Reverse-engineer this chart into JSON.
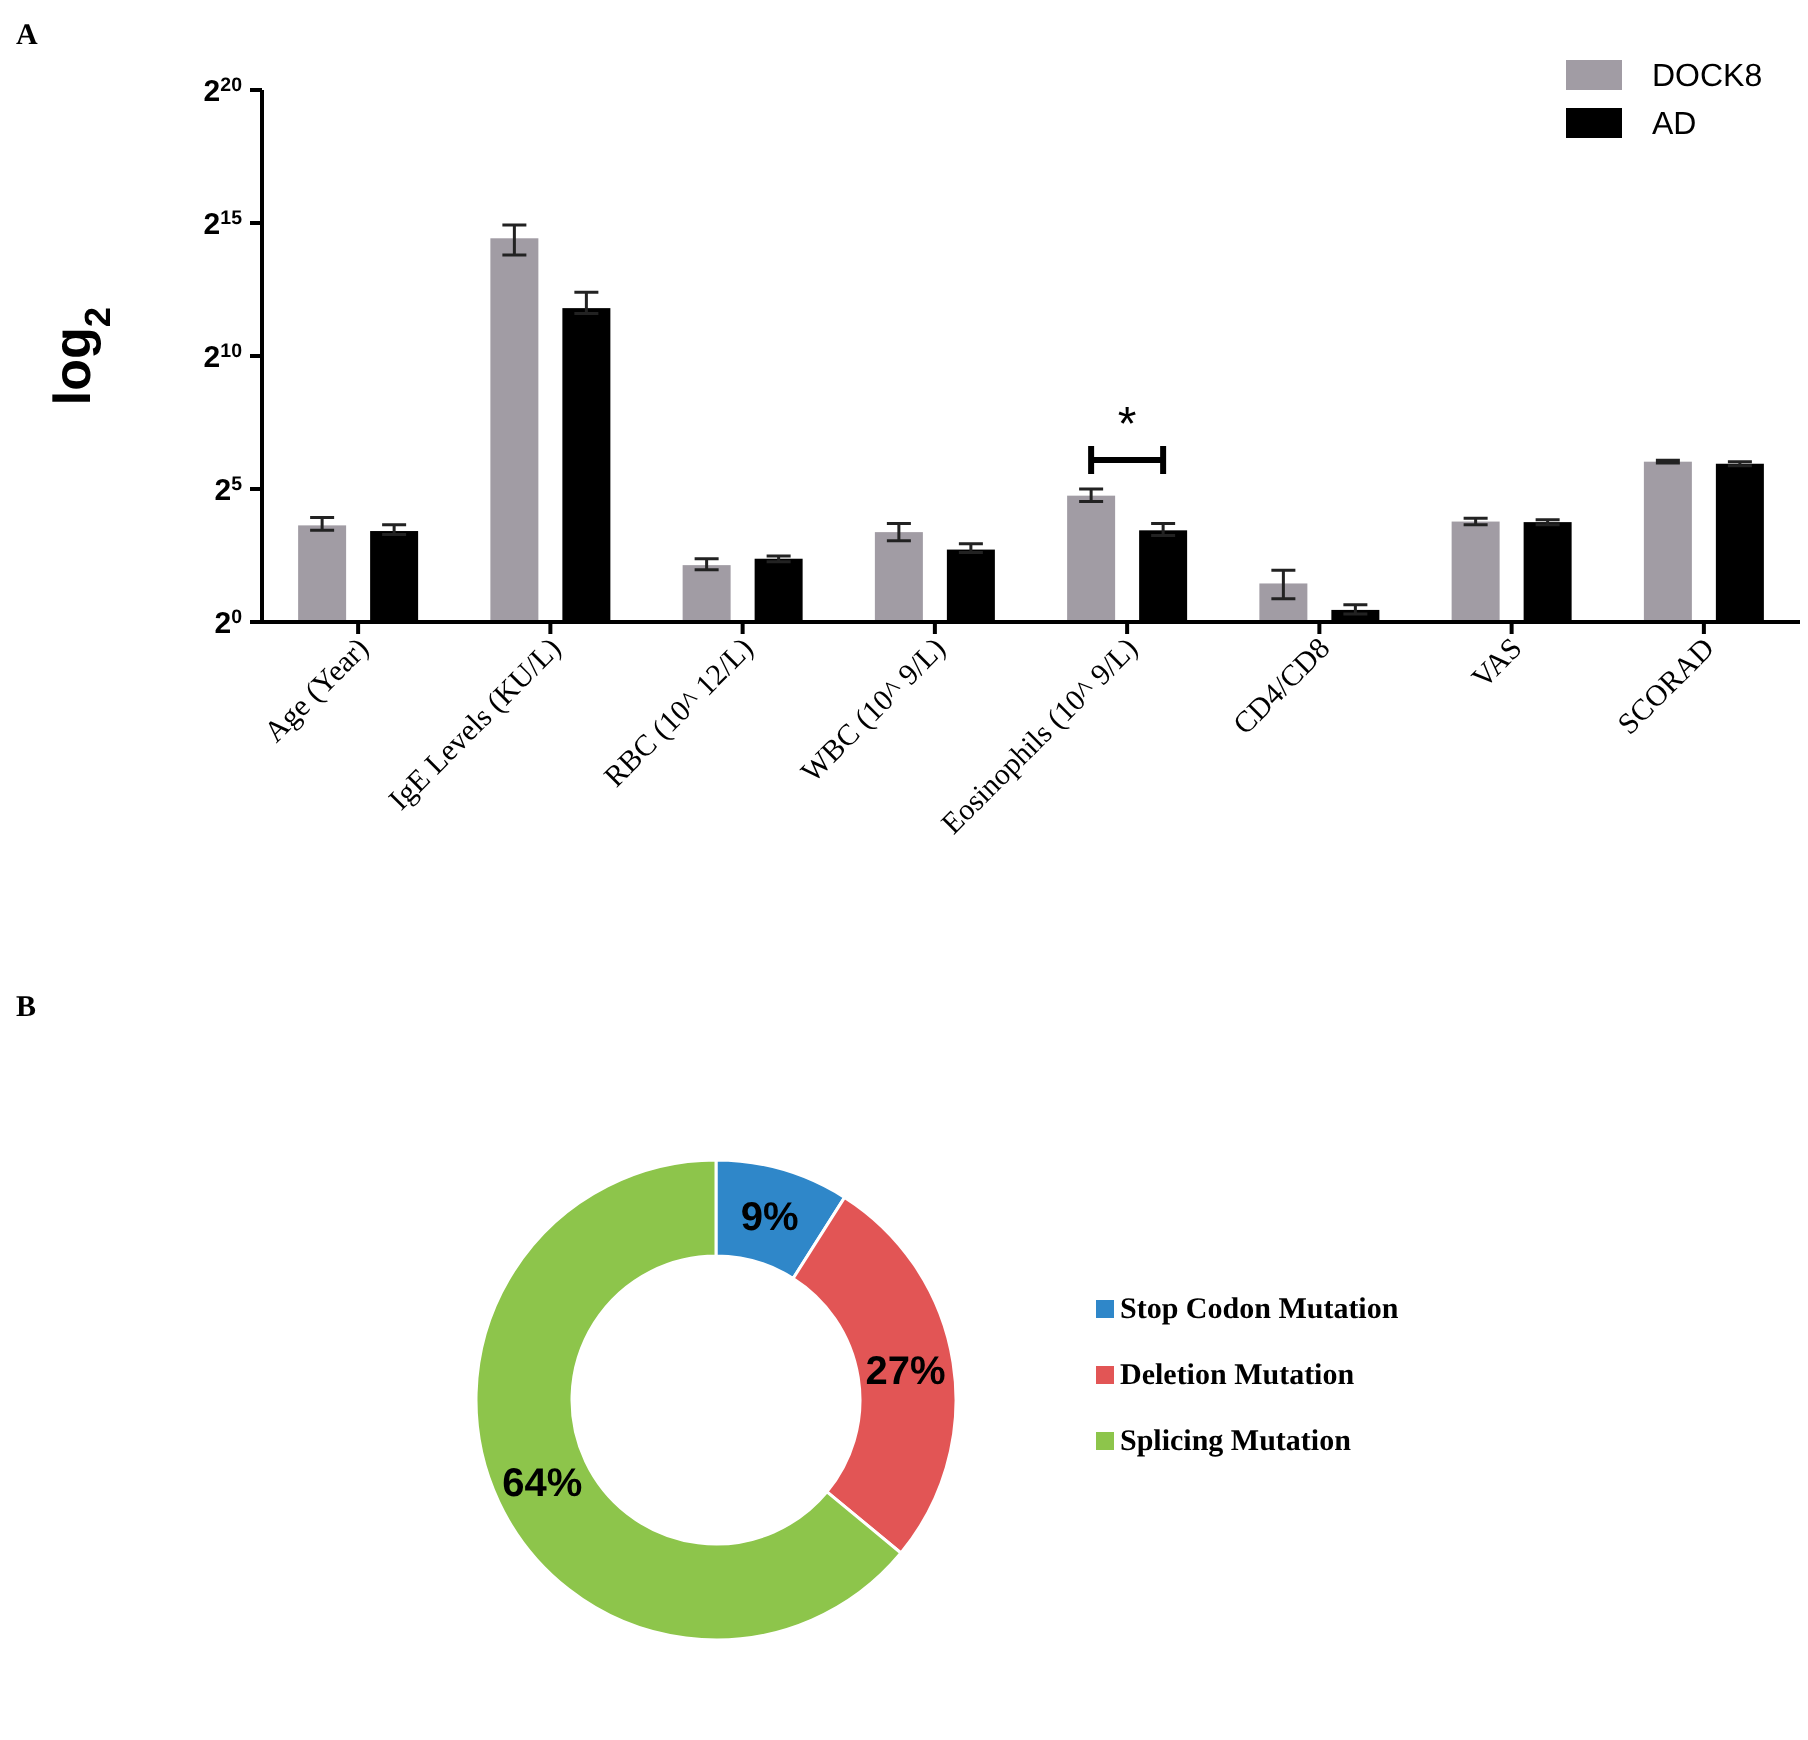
{
  "chart_data": [
    {
      "type": "bar",
      "title": "A",
      "ylabel": "log$_{2}$",
      "categories": [
        "Age  (Year)",
        "IgE Levels (KU/L)",
        "RBC (10^ 12/L)",
        "WBC (10^ 9/L)",
        "Eosinophils (10^ 9/L)",
        "CD4/CD8",
        "VAS",
        "SCORAD"
      ],
      "series": [
        {
          "name": "DOCK8",
          "color": "#a19ca4",
          "values": [
            12.4,
            22000,
            4.4,
            10.4,
            26.9,
            2.73,
            13.7,
            65.2
          ],
          "errors": [
            [
              10.9,
              15.2
            ],
            [
              14260,
              31100
            ],
            [
              3.9,
              5.2
            ],
            [
              8.3,
              13.0
            ],
            [
              23.1,
              32
            ],
            [
              1.83,
              3.86
            ],
            [
              12.6,
              14.9
            ],
            [
              63.0,
              67.5
            ]
          ]
        },
        {
          "name": "AD",
          "color": "#000000",
          "values": [
            10.7,
            3565,
            5.2,
            6.6,
            10.9,
            1.37,
            13.5,
            61.8
          ],
          "errors": [
            [
              9.8,
              12.6
            ],
            [
              3100,
              5400
            ],
            [
              4.8,
              5.6
            ],
            [
              6.1,
              7.7
            ],
            [
              9.5,
              13.0
            ],
            [
              1.23,
              1.57
            ],
            [
              12.6,
              14.4
            ],
            [
              58.8,
              65.2
            ]
          ]
        }
      ],
      "log": true,
      "ylim": [
        1,
        1048576
      ],
      "yticks": [
        {
          "value": 1,
          "label": "2$^{0}$"
        },
        {
          "value": 32,
          "label": "2$^{5}$"
        },
        {
          "value": 1024,
          "label": "2$^{10}$"
        },
        {
          "value": 32768,
          "label": "2$^{15}$"
        },
        {
          "value": 1048576,
          "label": "2$^{20}$"
        }
      ],
      "legend": "top right",
      "grid": false,
      "annotations": [
        "*"
      ]
    },
    {
      "type": "donut",
      "annotations": [
        "B"
      ],
      "categories": [
        "Stop Codon Mutation",
        "Deletion Mutation",
        "Splicing  Mutation"
      ],
      "values": [
        9,
        27,
        64
      ],
      "colors": [
        "#2f87c9",
        "#e25555",
        "#8dc54b"
      ],
      "value_labels": [
        "9%",
        "27%",
        "64%"
      ],
      "legend": "right"
    }
  ]
}
